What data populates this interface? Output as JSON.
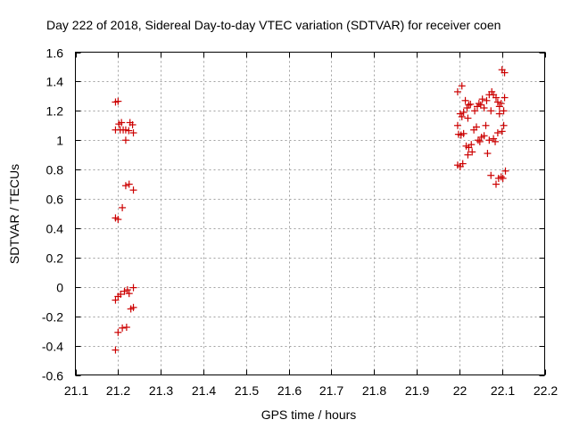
{
  "chart_data": {
    "type": "scatter",
    "title": "Day 222 of 2018, Sidereal Day-to-day VTEC variation (SDTVAR) for receiver coen",
    "xlabel": "GPS time / hours",
    "ylabel": "SDTVAR / TECUs",
    "xlim": [
      21.1,
      22.2
    ],
    "ylim": [
      -0.6,
      1.6
    ],
    "xticks": [
      "21.1",
      "21.2",
      "21.3",
      "21.4",
      "21.5",
      "21.6",
      "21.7",
      "21.8",
      "21.9",
      "22",
      "22.1",
      "22.2"
    ],
    "xtick_values": [
      21.1,
      21.2,
      21.3,
      21.4,
      21.5,
      21.6,
      21.7,
      21.8,
      21.9,
      22.0,
      22.1,
      22.2
    ],
    "yticks": [
      "-0.6",
      "-0.4",
      "-0.2",
      "0",
      "0.2",
      "0.4",
      "0.6",
      "0.8",
      "1",
      "1.2",
      "1.4",
      "1.6"
    ],
    "ytick_values": [
      -0.6,
      -0.4,
      -0.2,
      0.0,
      0.2,
      0.4,
      0.6,
      0.8,
      1.0,
      1.2,
      1.4,
      1.6
    ],
    "grid": true,
    "marker": "+",
    "color": "#cc0000",
    "series": [
      {
        "name": "SDTVAR",
        "points": [
          [
            21.194,
            1.26
          ],
          [
            21.2,
            1.265
          ],
          [
            21.194,
            1.07
          ],
          [
            21.202,
            1.11
          ],
          [
            21.208,
            1.12
          ],
          [
            21.205,
            1.07
          ],
          [
            21.212,
            1.07
          ],
          [
            21.218,
            1.0
          ],
          [
            21.218,
            1.07
          ],
          [
            21.225,
            1.065
          ],
          [
            21.228,
            1.12
          ],
          [
            21.234,
            1.105
          ],
          [
            21.236,
            1.05
          ],
          [
            21.218,
            0.69
          ],
          [
            21.226,
            0.7
          ],
          [
            21.236,
            0.66
          ],
          [
            21.21,
            0.54
          ],
          [
            21.194,
            0.47
          ],
          [
            21.2,
            0.46
          ],
          [
            21.236,
            -0.005
          ],
          [
            21.222,
            -0.02
          ],
          [
            21.215,
            -0.03
          ],
          [
            21.206,
            -0.05
          ],
          [
            21.2,
            -0.065
          ],
          [
            21.194,
            -0.09
          ],
          [
            21.226,
            -0.045
          ],
          [
            21.23,
            -0.15
          ],
          [
            21.236,
            -0.14
          ],
          [
            21.22,
            -0.275
          ],
          [
            21.21,
            -0.28
          ],
          [
            21.2,
            -0.31
          ],
          [
            21.194,
            -0.43
          ],
          [
            21.996,
            1.33
          ],
          [
            22.006,
            1.37
          ],
          [
            22.002,
            1.18
          ],
          [
            22.006,
            1.16
          ],
          [
            22.01,
            1.19
          ],
          [
            21.996,
            1.1
          ],
          [
            21.998,
            1.04
          ],
          [
            22.004,
            1.035
          ],
          [
            22.01,
            1.045
          ],
          [
            22.014,
            1.27
          ],
          [
            22.018,
            1.22
          ],
          [
            22.022,
            1.24
          ],
          [
            22.026,
            1.245
          ],
          [
            22.02,
            1.15
          ],
          [
            22.016,
            0.96
          ],
          [
            22.022,
            0.95
          ],
          [
            22.02,
            0.9
          ],
          [
            22.028,
            0.97
          ],
          [
            22.03,
            0.92
          ],
          [
            22.034,
            1.07
          ],
          [
            22.04,
            1.09
          ],
          [
            22.036,
            1.2
          ],
          [
            22.042,
            1.23
          ],
          [
            22.046,
            1.25
          ],
          [
            22.05,
            1.24
          ],
          [
            22.054,
            1.28
          ],
          [
            22.058,
            1.22
          ],
          [
            22.064,
            1.27
          ],
          [
            22.07,
            1.31
          ],
          [
            22.076,
            1.33
          ],
          [
            22.08,
            1.31
          ],
          [
            22.086,
            1.29
          ],
          [
            22.09,
            1.26
          ],
          [
            22.094,
            1.23
          ],
          [
            22.098,
            1.25
          ],
          [
            22.104,
            1.2
          ],
          [
            22.106,
            1.29
          ],
          [
            22.1,
            1.48
          ],
          [
            22.106,
            1.46
          ],
          [
            22.044,
            1.0
          ],
          [
            22.048,
            0.99
          ],
          [
            22.052,
            1.02
          ],
          [
            22.058,
            1.03
          ],
          [
            22.062,
            1.1
          ],
          [
            22.066,
            0.91
          ],
          [
            22.07,
            1.0
          ],
          [
            22.074,
            1.2
          ],
          [
            22.08,
            1.01
          ],
          [
            22.084,
            0.99
          ],
          [
            22.09,
            1.05
          ],
          [
            22.094,
            1.18
          ],
          [
            22.1,
            1.06
          ],
          [
            22.104,
            1.1
          ],
          [
            22.098,
            0.75
          ],
          [
            22.092,
            0.74
          ],
          [
            22.086,
            0.7
          ],
          [
            22.074,
            0.76
          ],
          [
            22.102,
            0.74
          ],
          [
            22.108,
            0.79
          ],
          [
            21.996,
            0.83
          ],
          [
            22.002,
            0.82
          ],
          [
            22.008,
            0.84
          ]
        ]
      }
    ]
  }
}
